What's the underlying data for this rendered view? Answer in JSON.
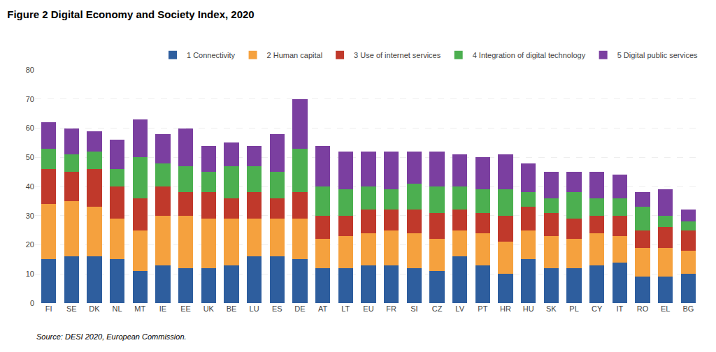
{
  "chart_data": {
    "type": "bar",
    "stacked": true,
    "title": "Figure 2 Digital Economy and Society Index, 2020",
    "annotations": [
      "Source: DESI 2020, European Commission."
    ],
    "categories": [
      "FI",
      "SE",
      "DK",
      "NL",
      "MT",
      "IE",
      "EE",
      "UK",
      "BE",
      "LU",
      "ES",
      "DE",
      "AT",
      "LT",
      "EU",
      "FR",
      "SI",
      "CZ",
      "LV",
      "PT",
      "HR",
      "HU",
      "SK",
      "PL",
      "CY",
      "IT",
      "RO",
      "EL",
      "BG"
    ],
    "series": [
      {
        "name": "1 Connectivity",
        "color": "#2e5e9e",
        "values": [
          15,
          16,
          16,
          15,
          11,
          13,
          12,
          12,
          13,
          16,
          16,
          15,
          12,
          12,
          13,
          13,
          12,
          11,
          16,
          13,
          10,
          15,
          12,
          12,
          13,
          14,
          9,
          9,
          10
        ]
      },
      {
        "name": "2 Human capital",
        "color": "#f5a13e",
        "values": [
          19,
          19,
          17,
          14,
          14,
          17,
          18,
          17,
          16,
          13,
          13,
          14,
          10,
          11,
          11,
          12,
          12,
          11,
          9,
          11,
          11,
          10,
          11,
          10,
          11,
          9,
          10,
          10,
          8
        ]
      },
      {
        "name": "3 Use of internet services",
        "color": "#c0392b",
        "values": [
          12,
          10,
          13,
          11,
          11,
          10,
          8,
          9,
          7,
          9,
          7,
          9,
          8,
          7,
          8,
          7,
          8,
          9,
          7,
          7,
          9,
          8,
          8,
          7,
          6,
          7,
          6,
          7,
          7
        ]
      },
      {
        "name": "4 Integration of digital technology",
        "color": "#4caf50",
        "values": [
          7,
          6,
          6,
          6,
          14,
          8,
          9,
          7,
          11,
          9,
          9,
          15,
          10,
          9,
          8,
          7,
          9,
          9,
          8,
          8,
          9,
          5,
          5,
          9,
          6,
          6,
          8,
          4,
          3
        ]
      },
      {
        "name": "5 Digital public services",
        "color": "#7b3fa0",
        "values": [
          9,
          9,
          7,
          10,
          13,
          10,
          13,
          9,
          8,
          7,
          13,
          17,
          14,
          13,
          12,
          13,
          11,
          12,
          11,
          11,
          12,
          10,
          9,
          7,
          9,
          8,
          5,
          9,
          4
        ]
      }
    ],
    "ylim": [
      0,
      80
    ],
    "yticks": [
      0,
      10,
      20,
      30,
      40,
      50,
      60,
      70,
      80
    ],
    "grid": true,
    "legend": "upper right"
  }
}
